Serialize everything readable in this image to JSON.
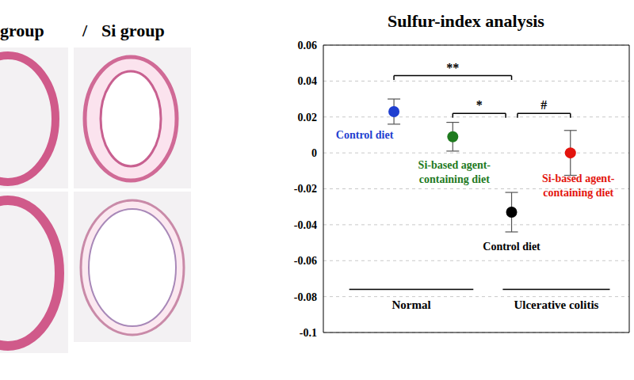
{
  "left_panel": {
    "labels": [
      "group",
      "/",
      "Si group"
    ]
  },
  "chart_data": {
    "type": "scatter",
    "title": "Sulfur-index analysis",
    "x": [
      1,
      2,
      3,
      4
    ],
    "values": [
      0.023,
      0.009,
      -0.033,
      0.0
    ],
    "errors": [
      0.007,
      0.008,
      0.011,
      0.0125
    ],
    "colors": [
      "#1f3fd0",
      "#1e7a1e",
      "#000000",
      "#e3140e"
    ],
    "point_labels": [
      [
        "Control diet"
      ],
      [
        "Si-based agent-",
        "containing diet"
      ],
      [
        "Control diet"
      ],
      [
        "Si-based agent-",
        "containing diet"
      ]
    ],
    "significance": [
      {
        "from": 1,
        "to": 3,
        "y": 0.043,
        "label": "**"
      },
      {
        "from": 2,
        "to": 3,
        "y": 0.022,
        "label": "*"
      },
      {
        "from": 3,
        "to": 4,
        "y": 0.022,
        "label": "#"
      }
    ],
    "groups": [
      {
        "label": "Normal",
        "from": 0.24,
        "to": 2.35,
        "y": -0.076
      },
      {
        "label": "Ulcerative colitis",
        "from": 2.85,
        "to": 4.67,
        "y": -0.076
      }
    ],
    "xlim": [
      -0.2,
      5
    ],
    "ylim": [
      -0.1,
      0.06
    ],
    "yticks": [
      -0.1,
      -0.08,
      -0.06,
      -0.04,
      -0.02,
      0,
      0.02,
      0.04,
      0.06
    ],
    "grid": true,
    "tick_labels": "y",
    "marker": "circle"
  }
}
